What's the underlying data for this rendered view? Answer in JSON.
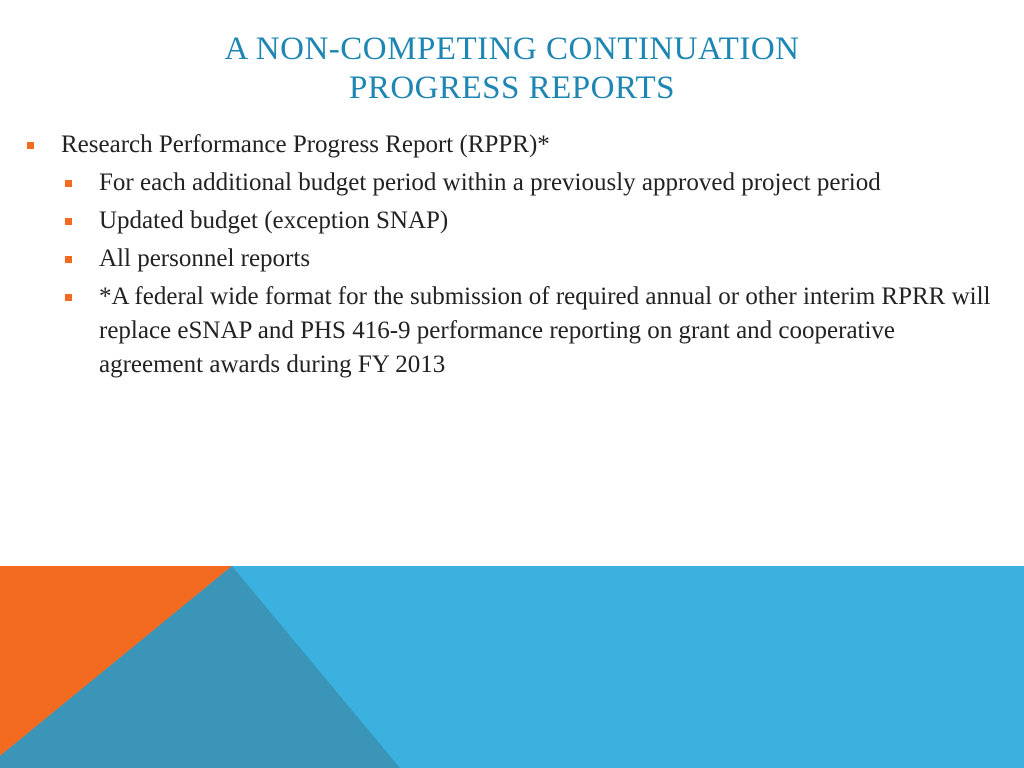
{
  "slide": {
    "title_line1": "A NON-COMPETING CONTINUATION",
    "title_line2": "PROGRESS REPORTS",
    "bullets": [
      {
        "text": "Research Performance Progress Report (RPPR)*"
      },
      {
        "text": "For each additional budget period within a previously approved project period"
      },
      {
        "text": "Updated budget (exception SNAP)"
      },
      {
        "text": "All personnel reports"
      },
      {
        "text": "*A federal wide format for the submission of required annual or other interim  RPRR will replace eSNAP and PHS 416-9 performance reporting on grant and cooperative agreement awards during FY 2013"
      }
    ]
  },
  "colors": {
    "title": "#1e86b3",
    "bullet_marker": "#f26b21",
    "band_blue": "#3bb1df",
    "band_orange": "#f26b21",
    "band_dark": "#3a95b9"
  }
}
